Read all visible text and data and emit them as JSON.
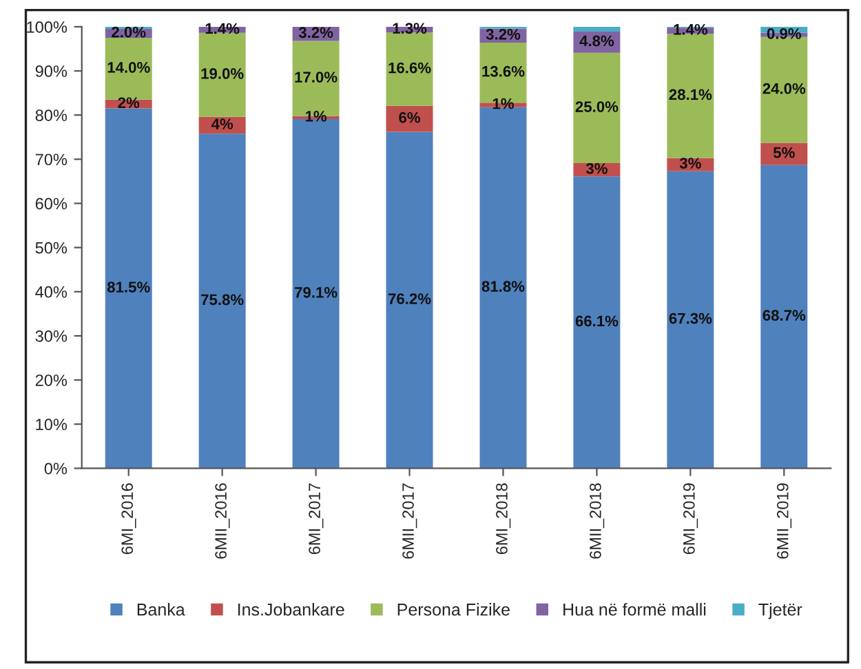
{
  "chart_data": {
    "type": "bar",
    "stacked": true,
    "categories": [
      "6MI_2016",
      "6MII_2016",
      "6MI_2017",
      "6MII_2017",
      "6MI_2018",
      "6MII_2018",
      "6MI_2019",
      "6MII_2019"
    ],
    "series": [
      {
        "name": "Banka",
        "color": "#4f81bd",
        "values": [
          81.5,
          75.8,
          79.1,
          76.2,
          81.8,
          66.1,
          67.3,
          68.7
        ],
        "value_labels": [
          "81.5%",
          "75.8%",
          "79.1%",
          "76.2%",
          "81.8%",
          "66.1%",
          "67.3%",
          "68.7%"
        ]
      },
      {
        "name": "Ins.Jobankare",
        "color": "#c0504d",
        "values": [
          2,
          3.8,
          0.7,
          5.9,
          1,
          3,
          3,
          5
        ],
        "value_labels": [
          "2%",
          "4%",
          "1%",
          "6%",
          "1%",
          "3%",
          "3%",
          "5%"
        ]
      },
      {
        "name": "Persona Fizike",
        "color": "#9bbb59",
        "values": [
          14.0,
          19.0,
          17.0,
          16.6,
          13.6,
          25.0,
          28.1,
          24.0
        ],
        "value_labels": [
          "14.0%",
          "19.0%",
          "17.0%",
          "16.6%",
          "13.6%",
          "25.0%",
          "28.1%",
          "24.0%"
        ]
      },
      {
        "name": "Hua në formë malli",
        "color": "#8064a2",
        "values": [
          2.0,
          1.4,
          3.2,
          1.3,
          3.2,
          4.8,
          1.4,
          0.9
        ],
        "value_labels": [
          "2.0%",
          "1.4%",
          "3.2%",
          "1.3%",
          "3.2%",
          "4.8%",
          "1.4%",
          "0.9%"
        ]
      },
      {
        "name": "Tjetër",
        "color": "#4bacc6",
        "values": [
          0.5,
          0,
          0,
          0,
          0.4,
          1.1,
          0.2,
          1.4
        ],
        "value_labels": [
          null,
          null,
          null,
          null,
          null,
          null,
          null,
          null
        ]
      }
    ],
    "ylim": [
      0,
      100
    ],
    "yticks": [
      {
        "value": 0,
        "label": "0%"
      },
      {
        "value": 10,
        "label": "10%"
      },
      {
        "value": 20,
        "label": "20%"
      },
      {
        "value": 30,
        "label": "30%"
      },
      {
        "value": 40,
        "label": "40%"
      },
      {
        "value": 50,
        "label": "50%"
      },
      {
        "value": 60,
        "label": "60%"
      },
      {
        "value": 70,
        "label": "70%"
      },
      {
        "value": 80,
        "label": "80%"
      },
      {
        "value": 90,
        "label": "90%"
      },
      {
        "value": 100,
        "label": "100%"
      }
    ],
    "grid": false,
    "legend": "bottom"
  }
}
